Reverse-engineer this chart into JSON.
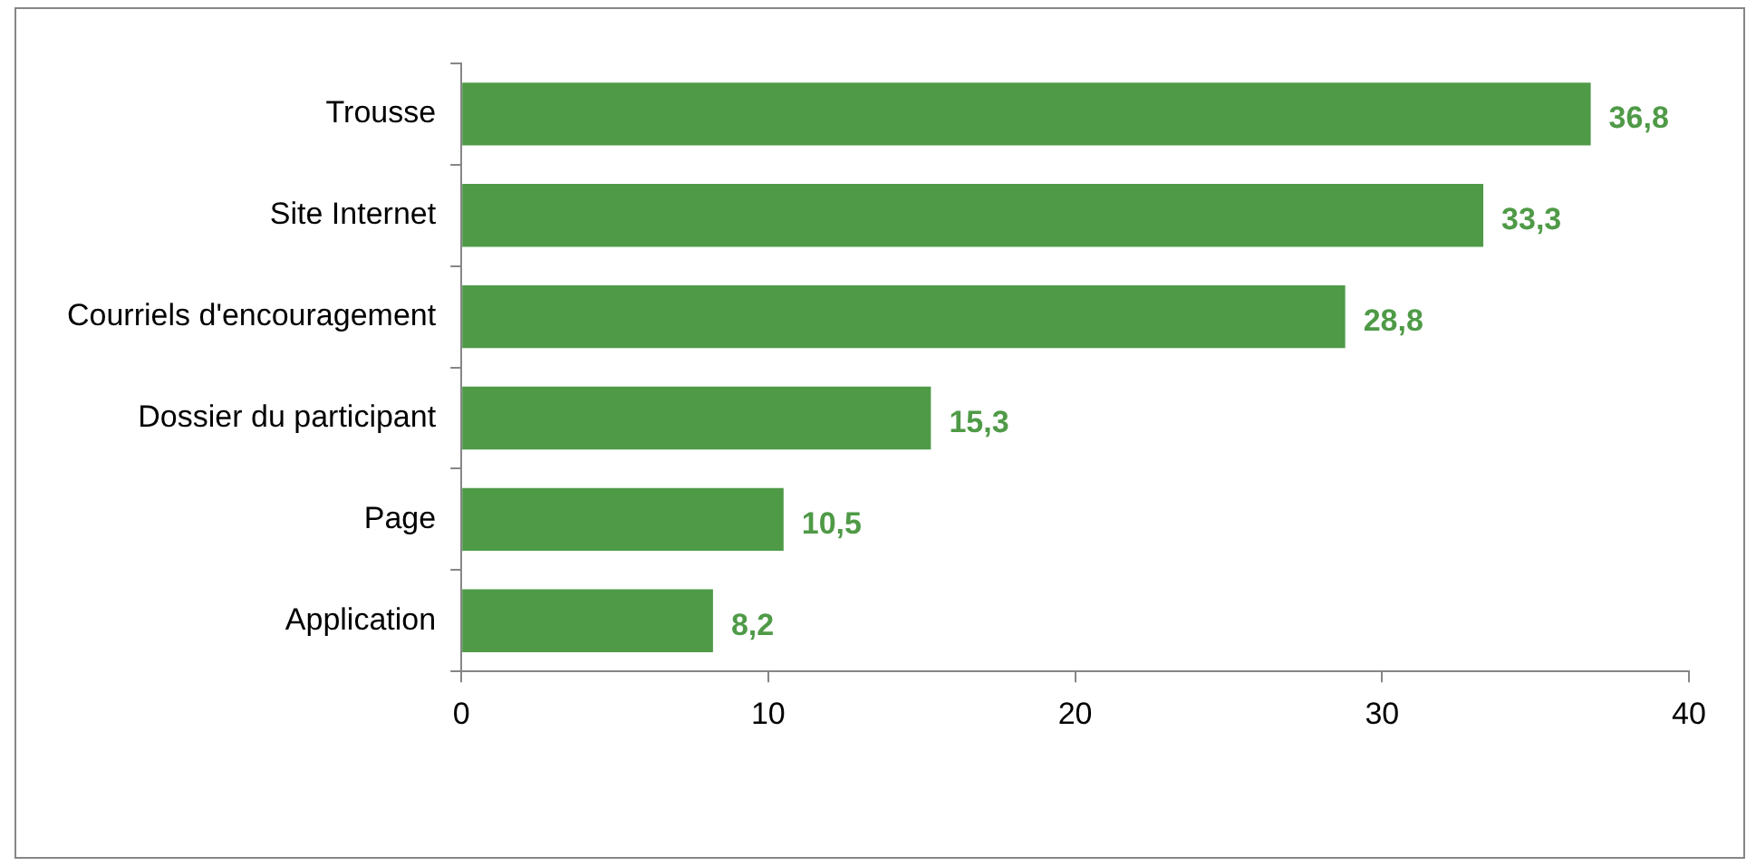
{
  "chart_data": {
    "type": "bar",
    "orientation": "horizontal",
    "categories": [
      "Trousse",
      "Site Internet",
      "Courriels d'encouragement",
      "Dossier du participant",
      "Page",
      "Application"
    ],
    "values": [
      36.8,
      33.3,
      28.8,
      15.3,
      10.5,
      8.2
    ],
    "value_labels": [
      "36,8",
      "33,3",
      "28,8",
      "15,3",
      "10,5",
      "8,2"
    ],
    "color": "#4f9a47",
    "xlim": [
      0,
      40
    ],
    "xticks": [
      0,
      10,
      20,
      30,
      40
    ],
    "grid": false,
    "legend": false
  }
}
